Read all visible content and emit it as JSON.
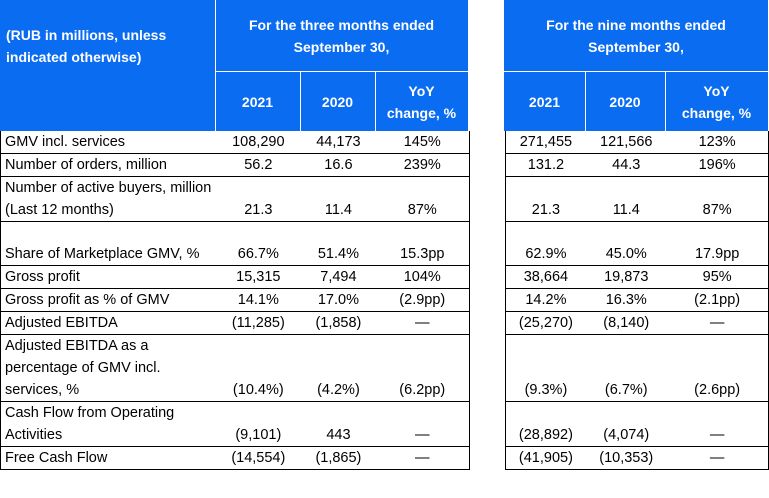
{
  "header": {
    "unit_note": "(RUB in millions, unless indicated otherwise)",
    "three_months_title": "For the three months ended September 30,",
    "nine_months_title": "For the nine months ended September 30,",
    "col_2021": "2021",
    "col_2020": "2020",
    "col_yoy": "YoY change, %"
  },
  "rows": [
    {
      "label": "GMV incl. services",
      "q21": "108,290",
      "q20": "44,173",
      "qyoy": "145%",
      "n21": "271,455",
      "n20": "121,566",
      "nyoy": "123%"
    },
    {
      "label": "Number of orders, million",
      "q21": "56.2",
      "q20": "16.6",
      "qyoy": "239%",
      "n21": "131.2",
      "n20": "44.3",
      "nyoy": "196%"
    },
    {
      "label": "Number of active buyers, million (Last 12 months)",
      "q21": "21.3",
      "q20": "11.4",
      "qyoy": "87%",
      "n21": "21.3",
      "n20": "11.4",
      "nyoy": "87%"
    },
    {
      "label": "Share of Marketplace GMV, %",
      "q21": "66.7%",
      "q20": "51.4%",
      "qyoy": "15.3pp",
      "n21": "62.9%",
      "n20": "45.0%",
      "nyoy": "17.9pp"
    },
    {
      "label": "Gross profit",
      "q21": "15,315",
      "q20": "7,494",
      "qyoy": "104%",
      "n21": "38,664",
      "n20": "19,873",
      "nyoy": "95%"
    },
    {
      "label": "Gross profit as % of GMV",
      "q21": "14.1%",
      "q20": "17.0%",
      "qyoy": "(2.9pp)",
      "n21": "14.2%",
      "n20": "16.3%",
      "nyoy": "(2.1pp)"
    },
    {
      "label": "Adjusted EBITDA",
      "q21": "(11,285)",
      "q20": "(1,858)",
      "qyoy": "—",
      "n21": "(25,270)",
      "n20": "(8,140)",
      "nyoy": "—"
    },
    {
      "label": "Adjusted EBITDA as a percentage of GMV incl. services, %",
      "q21": "(10.4%)",
      "q20": "(4.2%)",
      "qyoy": "(6.2pp)",
      "n21": "(9.3%)",
      "n20": "(6.7%)",
      "nyoy": "(2.6pp)"
    },
    {
      "label": "Cash Flow from Operating Activities",
      "q21": "(9,101)",
      "q20": "443",
      "qyoy": "—",
      "n21": "(28,892)",
      "n20": "(4,074)",
      "nyoy": "—"
    },
    {
      "label": "Free Cash Flow",
      "q21": "(14,554)",
      "q20": "(1,865)",
      "qyoy": "—",
      "n21": "(41,905)",
      "n20": "(10,353)",
      "nyoy": "—"
    }
  ]
}
